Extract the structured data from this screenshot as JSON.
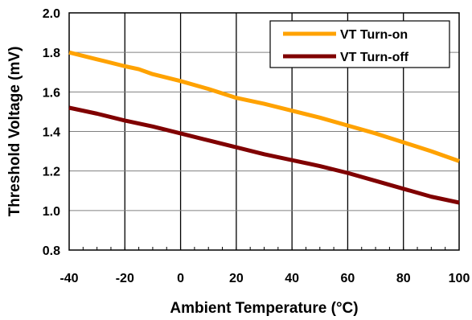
{
  "chart_data": {
    "type": "line",
    "xlabel": "Ambient Temperature (°C)",
    "ylabel": "Threshold Voltage (mV)",
    "xlim": [
      -40,
      100
    ],
    "ylim": [
      0.8,
      2.0
    ],
    "x_ticks": [
      -40,
      -20,
      0,
      20,
      40,
      60,
      80,
      100
    ],
    "x_tick_labels": [
      "-40",
      "-20",
      "0",
      "20",
      "40",
      "60",
      "80",
      "100"
    ],
    "y_ticks": [
      0.8,
      1.0,
      1.2,
      1.4,
      1.6,
      1.8,
      2.0
    ],
    "y_tick_labels": [
      "0.8",
      "1.0",
      "1.2",
      "1.4",
      "1.6",
      "1.8",
      "2.0"
    ],
    "grid": {
      "vertical": true,
      "horizontal": true
    },
    "legend_position": "top-right",
    "series": [
      {
        "name": "VT Turn-on",
        "color": "#FFA200",
        "x": [
          -40,
          -30,
          -20,
          -15,
          -10,
          0,
          10,
          20,
          30,
          40,
          50,
          60,
          70,
          80,
          90,
          100
        ],
        "y": [
          1.8,
          1.765,
          1.73,
          1.715,
          1.69,
          1.655,
          1.615,
          1.57,
          1.54,
          1.505,
          1.47,
          1.43,
          1.39,
          1.345,
          1.3,
          1.25
        ]
      },
      {
        "name": "VT Turn-off",
        "color": "#800000",
        "x": [
          -40,
          -30,
          -20,
          -10,
          0,
          10,
          20,
          30,
          40,
          50,
          60,
          70,
          80,
          90,
          100
        ],
        "y": [
          1.52,
          1.49,
          1.455,
          1.425,
          1.39,
          1.355,
          1.32,
          1.285,
          1.255,
          1.225,
          1.19,
          1.15,
          1.11,
          1.07,
          1.04
        ]
      }
    ]
  }
}
